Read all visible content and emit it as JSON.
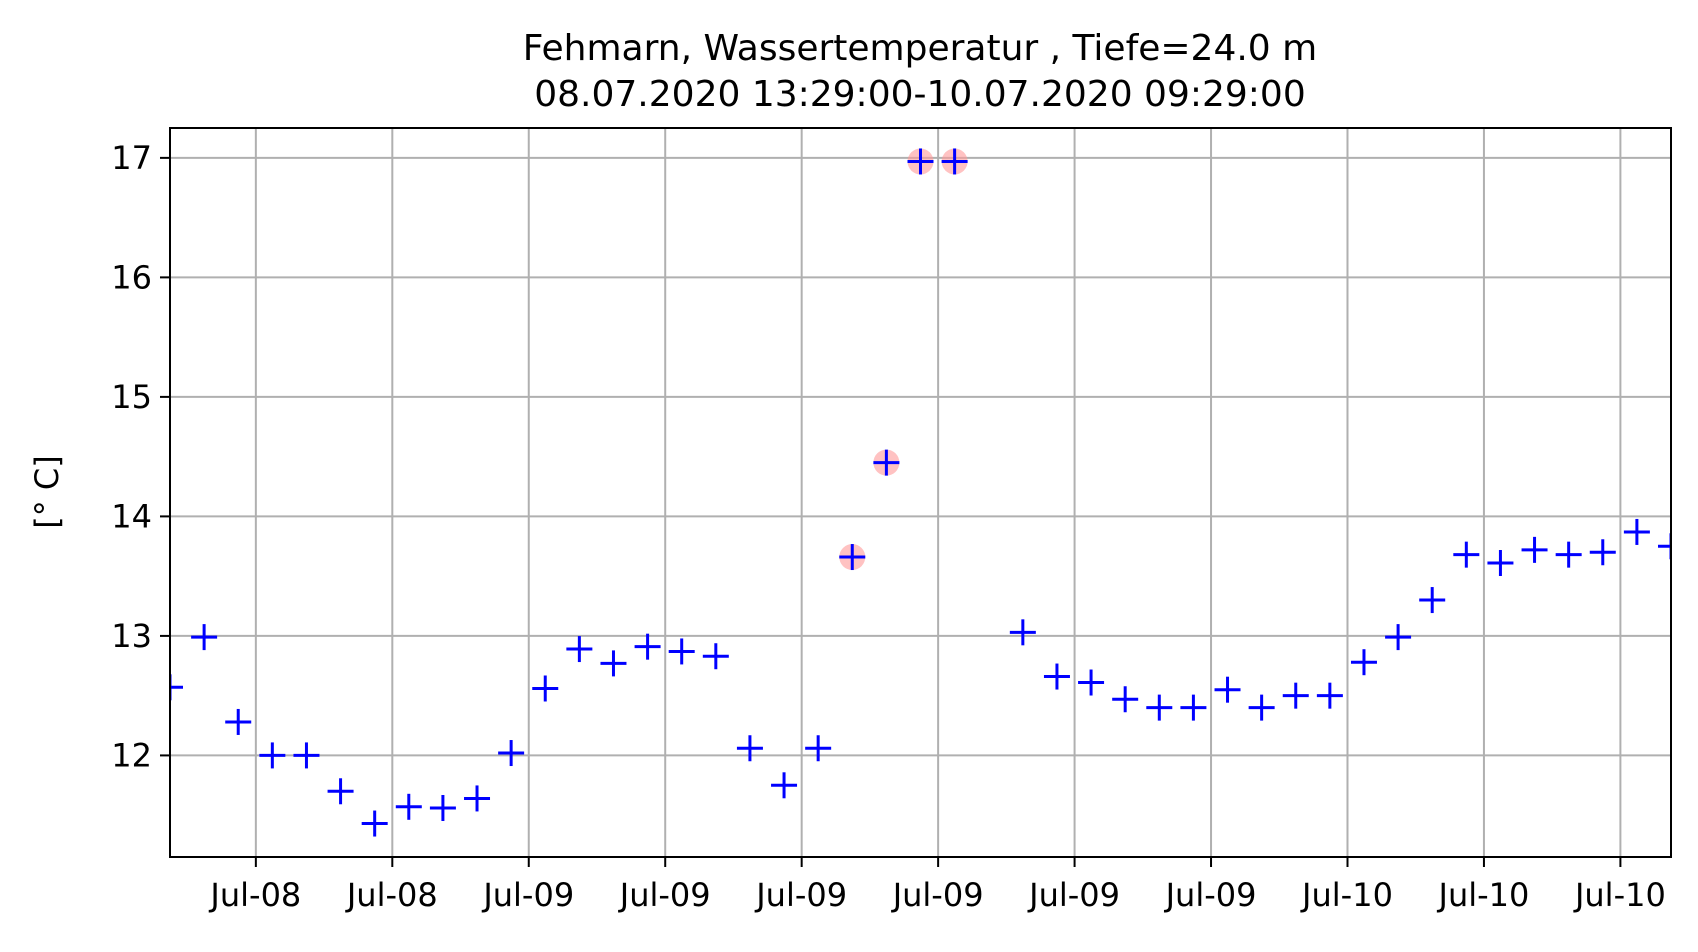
{
  "chart_data": {
    "type": "scatter",
    "title": "Fehmarn, Wassertemperatur , Tiefe=24.0 m",
    "subtitle": "08.07.2020 13:29:00-10.07.2020 09:29:00",
    "xlabel": "",
    "ylabel": "[° C]",
    "x_range": [
      "2020-07-08T13:29:00",
      "2020-07-10T09:29:00"
    ],
    "ylim": [
      11.15,
      17.25
    ],
    "grid": true,
    "marker": "+",
    "marker_color": "#0000ff",
    "highlight_color": "#ff9999",
    "y_ticks": [
      12,
      13,
      14,
      15,
      16,
      17
    ],
    "x_tick_labels": [
      "Jul-08",
      "Jul-08",
      "Jul-09",
      "Jul-09",
      "Jul-09",
      "Jul-09",
      "Jul-09",
      "Jul-09",
      "Jul-10",
      "Jul-10",
      "Jul-10"
    ],
    "x_tick_times": [
      "2020-07-08T16:00:00",
      "2020-07-08T20:00:00",
      "2020-07-09T00:00:00",
      "2020-07-09T04:00:00",
      "2020-07-09T08:00:00",
      "2020-07-09T12:00:00",
      "2020-07-09T16:00:00",
      "2020-07-09T20:00:00",
      "2020-07-10T00:00:00",
      "2020-07-10T04:00:00",
      "2020-07-10T08:00:00"
    ],
    "series": [
      {
        "points": [
          {
            "t": "2020-07-08T13:29:00",
            "y": 12.57
          },
          {
            "t": "2020-07-08T14:29:00",
            "y": 12.99
          },
          {
            "t": "2020-07-08T15:29:00",
            "y": 12.28
          },
          {
            "t": "2020-07-08T16:29:00",
            "y": 12.0
          },
          {
            "t": "2020-07-08T17:29:00",
            "y": 12.0
          },
          {
            "t": "2020-07-08T18:29:00",
            "y": 11.7
          },
          {
            "t": "2020-07-08T19:29:00",
            "y": 11.43
          },
          {
            "t": "2020-07-08T20:29:00",
            "y": 11.57
          },
          {
            "t": "2020-07-08T21:29:00",
            "y": 11.56
          },
          {
            "t": "2020-07-08T22:29:00",
            "y": 11.64
          },
          {
            "t": "2020-07-08T23:29:00",
            "y": 12.02
          },
          {
            "t": "2020-07-09T00:29:00",
            "y": 12.56
          },
          {
            "t": "2020-07-09T01:29:00",
            "y": 12.89
          },
          {
            "t": "2020-07-09T02:29:00",
            "y": 12.77
          },
          {
            "t": "2020-07-09T03:29:00",
            "y": 12.91
          },
          {
            "t": "2020-07-09T04:29:00",
            "y": 12.87
          },
          {
            "t": "2020-07-09T05:29:00",
            "y": 12.83
          },
          {
            "t": "2020-07-09T06:29:00",
            "y": 12.06
          },
          {
            "t": "2020-07-09T07:29:00",
            "y": 11.75
          },
          {
            "t": "2020-07-09T08:29:00",
            "y": 12.06
          },
          {
            "t": "2020-07-09T09:29:00",
            "y": 13.66,
            "flagged": true
          },
          {
            "t": "2020-07-09T10:29:00",
            "y": 14.45,
            "flagged": true
          },
          {
            "t": "2020-07-09T11:29:00",
            "y": 16.97,
            "flagged": true
          },
          {
            "t": "2020-07-09T12:29:00",
            "y": 16.97,
            "flagged": true
          },
          {
            "t": "2020-07-09T14:29:00",
            "y": 13.03
          },
          {
            "t": "2020-07-09T15:29:00",
            "y": 12.66
          },
          {
            "t": "2020-07-09T16:29:00",
            "y": 12.61
          },
          {
            "t": "2020-07-09T17:29:00",
            "y": 12.47
          },
          {
            "t": "2020-07-09T18:29:00",
            "y": 12.4
          },
          {
            "t": "2020-07-09T19:29:00",
            "y": 12.4
          },
          {
            "t": "2020-07-09T20:29:00",
            "y": 12.55
          },
          {
            "t": "2020-07-09T21:29:00",
            "y": 12.4
          },
          {
            "t": "2020-07-09T22:29:00",
            "y": 12.5
          },
          {
            "t": "2020-07-09T23:29:00",
            "y": 12.5
          },
          {
            "t": "2020-07-10T00:29:00",
            "y": 12.78
          },
          {
            "t": "2020-07-10T01:29:00",
            "y": 12.99
          },
          {
            "t": "2020-07-10T02:29:00",
            "y": 13.3
          },
          {
            "t": "2020-07-10T03:29:00",
            "y": 13.68
          },
          {
            "t": "2020-07-10T04:29:00",
            "y": 13.61
          },
          {
            "t": "2020-07-10T05:29:00",
            "y": 13.72
          },
          {
            "t": "2020-07-10T06:29:00",
            "y": 13.68
          },
          {
            "t": "2020-07-10T07:29:00",
            "y": 13.7
          },
          {
            "t": "2020-07-10T08:29:00",
            "y": 13.87
          },
          {
            "t": "2020-07-10T09:29:00",
            "y": 13.75
          }
        ]
      }
    ]
  }
}
